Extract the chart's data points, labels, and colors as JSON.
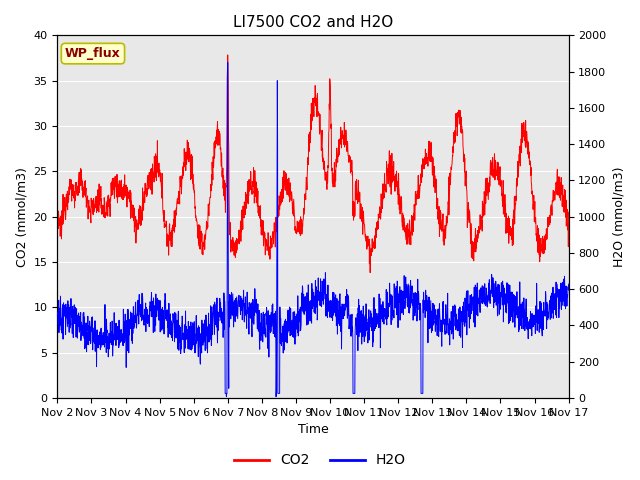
{
  "title": "LI7500 CO2 and H2O",
  "xlabel": "Time",
  "ylabel_left": "CO2 (mmol/m3)",
  "ylabel_right": "H2O (mmol/m3)",
  "annotation": "WP_flux",
  "xlim": [
    0,
    15
  ],
  "ylim_left": [
    0,
    40
  ],
  "ylim_right": [
    0,
    2000
  ],
  "xtick_labels": [
    "Nov 2",
    "Nov 3",
    "Nov 4",
    "Nov 5",
    "Nov 6",
    "Nov 7",
    "Nov 8",
    "Nov 9",
    "Nov 10",
    "Nov 11",
    "Nov 12",
    "Nov 13",
    "Nov 14",
    "Nov 15",
    "Nov 16",
    "Nov 17"
  ],
  "xtick_positions": [
    0,
    1,
    2,
    3,
    4,
    5,
    6,
    7,
    8,
    9,
    10,
    11,
    12,
    13,
    14,
    15
  ],
  "ytick_left": [
    0,
    5,
    10,
    15,
    20,
    25,
    30,
    35,
    40
  ],
  "ytick_right": [
    0,
    200,
    400,
    600,
    800,
    1000,
    1200,
    1400,
    1600,
    1800,
    2000
  ],
  "background_color": "#e8e8e8",
  "co2_color": "#ff0000",
  "h2o_color": "#0000ff",
  "legend_co2": "CO2",
  "legend_h2o": "H2O",
  "grid_color": "#ffffff",
  "title_fontsize": 11,
  "tick_fontsize": 8,
  "label_fontsize": 9
}
